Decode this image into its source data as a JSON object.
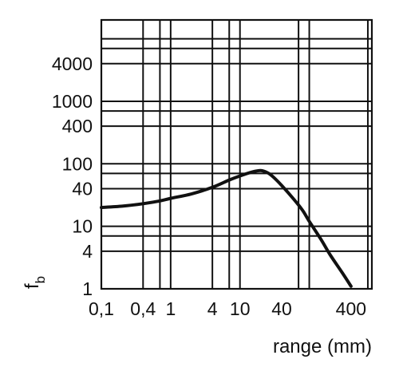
{
  "chart_data": {
    "type": "line",
    "title": "",
    "xlabel": "range (mm)",
    "ylabel": "f",
    "ylabel_subscript": "b",
    "xscale": "log",
    "yscale": "log",
    "xlim": [
      0.1,
      800
    ],
    "ylim": [
      1,
      20000
    ],
    "grid": true,
    "x_ticks": [
      0.1,
      0.4,
      1,
      4,
      10,
      40,
      400
    ],
    "x_tick_labels": [
      "0,1",
      "0,4",
      "1",
      "4",
      "10",
      "40",
      "400"
    ],
    "y_ticks": [
      1,
      4,
      10,
      40,
      100,
      400,
      1000,
      4000
    ],
    "y_tick_labels": [
      "1",
      "4",
      "10",
      "40",
      "100",
      "400",
      "1000",
      "4000"
    ],
    "x_gridlines": [
      0.4,
      0.7,
      1,
      4,
      7,
      10,
      70,
      100,
      700
    ],
    "y_gridlines": [
      4,
      7,
      10,
      40,
      70,
      100,
      400,
      700,
      1000,
      4000,
      7000,
      10000
    ],
    "series": [
      {
        "x": [
          0.1,
          0.2,
          0.4,
          0.7,
          1,
          2,
          4,
          7,
          10,
          15,
          20,
          25,
          30,
          40,
          60,
          80,
          100,
          150,
          200,
          300,
          400
        ],
        "y": [
          20,
          21,
          23,
          25.5,
          28,
          33,
          42,
          55,
          64,
          74,
          78,
          72,
          62,
          45,
          27,
          18,
          12,
          6,
          3.5,
          1.8,
          1.1
        ]
      }
    ]
  }
}
